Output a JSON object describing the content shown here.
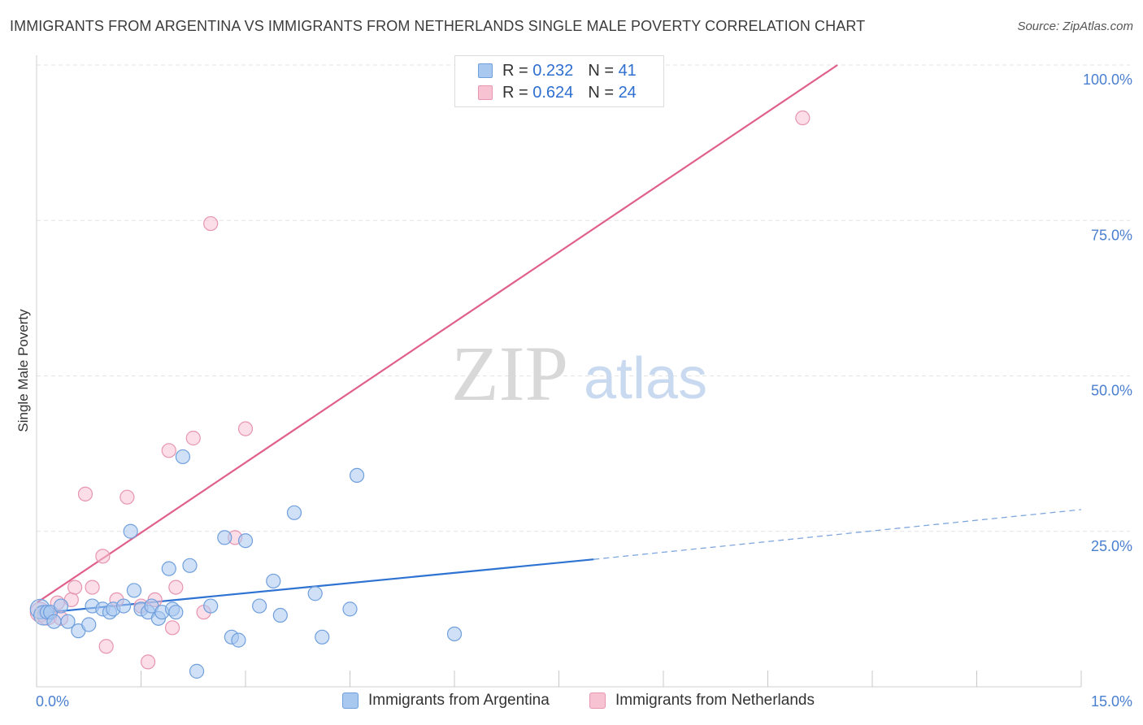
{
  "title": "IMMIGRANTS FROM ARGENTINA VS IMMIGRANTS FROM NETHERLANDS SINGLE MALE POVERTY CORRELATION CHART",
  "source": "Source: ZipAtlas.com",
  "watermark": {
    "zip": "ZIP",
    "atlas": "atlas"
  },
  "legend": {
    "rows": [
      {
        "r_label": "R =",
        "r_value": "0.232",
        "n_label": "N =",
        "n_value": "41",
        "color": "#a9c8f0",
        "border": "#6f9fdc"
      },
      {
        "r_label": "R =",
        "r_value": "0.624",
        "n_label": "N =",
        "n_value": "24",
        "color": "#f7c3d3",
        "border": "#e795b0"
      }
    ]
  },
  "bottom_legend": [
    {
      "label": "Immigrants from Argentina",
      "color": "#a9c8f0",
      "border": "#6f9fdc"
    },
    {
      "label": "Immigrants from Netherlands",
      "color": "#f7c3d3",
      "border": "#e795b0"
    }
  ],
  "chart_data": {
    "type": "scatter",
    "title": "IMMIGRANTS FROM ARGENTINA VS IMMIGRANTS FROM NETHERLANDS SINGLE MALE POVERTY CORRELATION CHART",
    "xlabel": "",
    "ylabel": "Single Male Poverty",
    "xlim": [
      0,
      15
    ],
    "ylim": [
      0,
      100
    ],
    "x_tick_labels": [
      {
        "value": 0,
        "label": "0.0%"
      },
      {
        "value": 15,
        "label": "15.0%"
      }
    ],
    "y_tick_labels": [
      {
        "value": 100,
        "label": "100.0%"
      },
      {
        "value": 75,
        "label": "75.0%"
      },
      {
        "value": 50,
        "label": "50.0%"
      },
      {
        "value": 25,
        "label": "25.0%"
      }
    ],
    "grid": true,
    "legend_position": "top-center",
    "series": [
      {
        "name": "Immigrants from Argentina",
        "color": "#6f9fdc",
        "fill": "#a9c8f0",
        "x": [
          0.05,
          0.1,
          0.15,
          0.2,
          0.25,
          0.35,
          0.45,
          0.6,
          0.75,
          0.8,
          0.95,
          1.05,
          1.1,
          1.25,
          1.35,
          1.4,
          1.5,
          1.6,
          1.65,
          1.75,
          1.8,
          1.9,
          1.95,
          2.0,
          2.1,
          2.2,
          2.3,
          2.5,
          2.7,
          2.8,
          2.9,
          3.0,
          3.2,
          3.4,
          3.5,
          3.7,
          4.0,
          4.1,
          4.5,
          4.6,
          6.0
        ],
        "y": [
          12.5,
          11.5,
          12.0,
          12.0,
          10.5,
          13.0,
          10.5,
          9.0,
          10.0,
          13.0,
          12.5,
          12.0,
          12.5,
          13.0,
          25.0,
          15.5,
          12.5,
          12.0,
          13.0,
          11.0,
          12.0,
          19.0,
          12.5,
          12.0,
          37.0,
          19.5,
          2.5,
          13.0,
          24.0,
          8.0,
          7.5,
          23.5,
          13.0,
          17.0,
          11.5,
          28.0,
          15.0,
          8.0,
          12.5,
          34.0,
          8.5
        ]
      },
      {
        "name": "Immigrants from Netherlands",
        "color": "#e795b0",
        "fill": "#f7c3d3",
        "x": [
          0.05,
          0.15,
          0.3,
          0.35,
          0.5,
          0.55,
          0.7,
          0.8,
          0.95,
          1.0,
          1.15,
          1.3,
          1.5,
          1.6,
          1.7,
          1.9,
          1.95,
          2.0,
          2.25,
          2.4,
          2.5,
          2.85,
          3.0,
          11.0
        ],
        "y": [
          12.0,
          11.5,
          13.5,
          11.0,
          14.0,
          16.0,
          31.0,
          16.0,
          21.0,
          6.5,
          14.0,
          30.5,
          13.0,
          4.0,
          14.0,
          38.0,
          9.5,
          16.0,
          40.0,
          12.0,
          74.5,
          24.0,
          41.5,
          91.5
        ]
      }
    ],
    "trend_lines": [
      {
        "series": "Immigrants from Argentina",
        "solid_from": [
          0.0,
          11.8
        ],
        "solid_to": [
          8.0,
          20.5
        ],
        "dashed_to": [
          15.0,
          28.5
        ]
      },
      {
        "series": "Immigrants from Netherlands",
        "solid_from": [
          0.0,
          13.5
        ],
        "solid_to": [
          11.5,
          100.0
        ]
      }
    ]
  }
}
